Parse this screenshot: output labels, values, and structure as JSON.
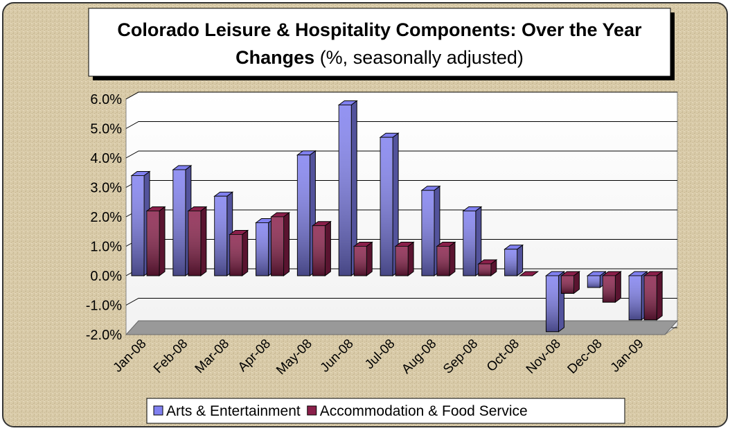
{
  "chart_data": {
    "type": "bar3d",
    "title": "Colorado Leisure & Hospitality Components: Over the Year  Changes",
    "subtitle": "(%, seasonally adjusted)",
    "categories": [
      "Jan-08",
      "Feb-08",
      "Mar-08",
      "Apr-08",
      "May-08",
      "Jun-08",
      "Jul-08",
      "Aug-08",
      "Sep-08",
      "Oct-08",
      "Nov-08",
      "Dec-08",
      "Jan-09"
    ],
    "series": [
      {
        "name": "Arts & Entertainment",
        "color": "#8080f0",
        "values": [
          3.4,
          3.6,
          2.7,
          1.8,
          4.1,
          5.8,
          4.7,
          2.9,
          2.2,
          0.9,
          -1.9,
          -0.4,
          -1.5
        ]
      },
      {
        "name": "Accommodation & Food Service",
        "color": "#8a1f4a",
        "values": [
          2.2,
          2.2,
          1.4,
          2.0,
          1.7,
          1.0,
          1.0,
          1.0,
          0.4,
          0.0,
          -0.6,
          -0.9,
          -1.5
        ]
      }
    ],
    "ylim": [
      -2,
      6
    ],
    "yticks": [
      {
        "value": -2,
        "label": "-2.0%"
      },
      {
        "value": -1,
        "label": "-1.0%"
      },
      {
        "value": 0,
        "label": "0.0%"
      },
      {
        "value": 1,
        "label": "1.0%"
      },
      {
        "value": 2,
        "label": "2.0%"
      },
      {
        "value": 3,
        "label": "3.0%"
      },
      {
        "value": 4,
        "label": "4.0%"
      },
      {
        "value": 5,
        "label": "5.0%"
      },
      {
        "value": 6,
        "label": "6.0%"
      }
    ],
    "grid": true
  }
}
